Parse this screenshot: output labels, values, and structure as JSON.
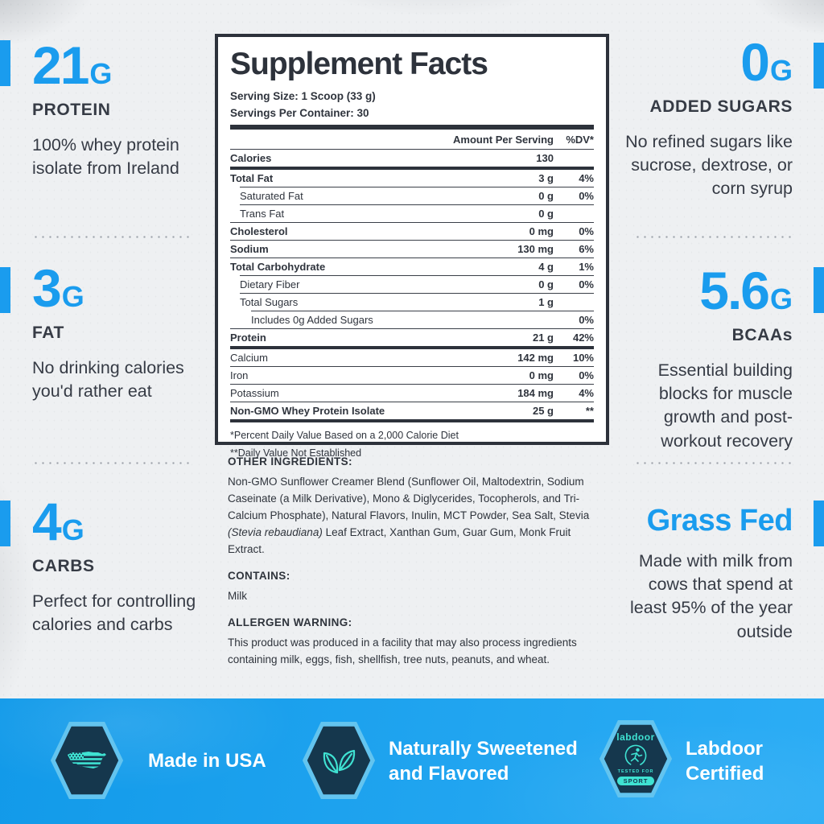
{
  "colors": {
    "accent": "#1a9cee",
    "charcoal": "#343a43",
    "rule-dark": "#2d323b",
    "page-bg": "#eef0f2",
    "banner-top": "#129ae9",
    "banner-bottom": "#2cadf5",
    "hex-fill": "#15374d",
    "hex-ring": "#63c4ef",
    "icon-teal": "#3fe2d2"
  },
  "left_sections": [
    {
      "value": "21",
      "unit": "G",
      "label": "PROTEIN",
      "desc": "100% whey protein isolate from Ireland"
    },
    {
      "value": "3",
      "unit": "G",
      "label": "FAT",
      "desc": "No drinking calories you'd rather eat"
    },
    {
      "value": "4",
      "unit": "G",
      "label": "CARBS",
      "desc": "Perfect for controlling calories and carbs"
    }
  ],
  "right_sections": [
    {
      "value": "0",
      "unit": "G",
      "label": "ADDED SUGARS",
      "desc": "No refined sugars like sucrose, dextrose, or corn syrup"
    },
    {
      "value": "5.6",
      "unit": "G",
      "label": "BCAAs",
      "desc": "Essential building blocks for muscle growth and post-workout recovery"
    },
    {
      "heading": "Grass Fed",
      "desc": "Made with milk from cows that spend at least 95% of the year outside"
    }
  ],
  "panel": {
    "title": "Supplement Facts",
    "serving_size": "Serving Size: 1 Scoop (33 g)",
    "servings_per_container": "Servings Per Container: 30",
    "col_amount": "Amount Per Serving",
    "col_dv": "%DV*",
    "rows": [
      {
        "label": "Calories",
        "amount": "130",
        "dv": "",
        "indent": 0,
        "bold": true,
        "thick": true
      },
      {
        "label": "Total Fat",
        "amount": "3 g",
        "dv": "4%",
        "indent": 0,
        "bold": true,
        "thick": false
      },
      {
        "label": "Saturated Fat",
        "amount": "0 g",
        "dv": "0%",
        "indent": 1,
        "bold": false,
        "thick": false
      },
      {
        "label": "Trans Fat",
        "amount": "0 g",
        "dv": "",
        "indent": 1,
        "bold": false,
        "thick": false
      },
      {
        "label": "Cholesterol",
        "amount": "0 mg",
        "dv": "0%",
        "indent": 0,
        "bold": true,
        "thick": false
      },
      {
        "label": "Sodium",
        "amount": "130 mg",
        "dv": "6%",
        "indent": 0,
        "bold": true,
        "thick": false
      },
      {
        "label": "Total Carbohydrate",
        "amount": "4 g",
        "dv": "1%",
        "indent": 0,
        "bold": true,
        "thick": false
      },
      {
        "label": "Dietary Fiber",
        "amount": "0 g",
        "dv": "0%",
        "indent": 1,
        "bold": false,
        "thick": false
      },
      {
        "label": "Total Sugars",
        "amount": "1 g",
        "dv": "",
        "indent": 1,
        "bold": false,
        "thick": false
      },
      {
        "label": "Includes 0g Added Sugars",
        "amount": "",
        "dv": "0%",
        "indent": 2,
        "bold": false,
        "thick": false
      },
      {
        "label": "Protein",
        "amount": "21 g",
        "dv": "42%",
        "indent": 0,
        "bold": true,
        "thick": true
      },
      {
        "label": "Calcium",
        "amount": "142 mg",
        "dv": "10%",
        "indent": 0,
        "bold": false,
        "thick": false
      },
      {
        "label": "Iron",
        "amount": "0 mg",
        "dv": "0%",
        "indent": 0,
        "bold": false,
        "thick": false
      },
      {
        "label": "Potassium",
        "amount": "184 mg",
        "dv": "4%",
        "indent": 0,
        "bold": false,
        "thick": false
      },
      {
        "label": "Non-GMO Whey Protein Isolate",
        "amount": "25 g",
        "dv": "**",
        "indent": 0,
        "bold": true,
        "thick": true
      }
    ],
    "footnote1": "*Percent Daily Value Based on a 2,000 Calorie Diet",
    "footnote2": "**Daily Value Not Established"
  },
  "ingredients": {
    "other_heading": "OTHER INGREDIENTS:",
    "other_pre": "Non-GMO Sunflower Creamer Blend (Sunflower Oil, Maltodextrin, Sodium Caseinate (a Milk Derivative), Mono & Diglycerides, Tocopherols, and Tri-Calcium Phosphate), Natural Flavors, Inulin, MCT Powder, Sea Salt, Stevia ",
    "other_italic": "(Stevia rebaudiana)",
    "other_post": " Leaf Extract, Xanthan Gum, Guar Gum, Monk Fruit Extract.",
    "contains_heading": "CONTAINS:",
    "contains_text": "Milk",
    "allergen_heading": "ALLERGEN WARNING:",
    "allergen_text": "This product was produced in a facility that may also process ingredients containing milk, eggs, fish, shellfish, tree nuts, peanuts, and wheat."
  },
  "banner": {
    "badges": [
      {
        "label": "Made in USA"
      },
      {
        "label": "Naturally Sweetened and Flavored"
      },
      {
        "label": "Labdoor Certified",
        "wordmark": "labdoor",
        "tested_for": "TESTED FOR",
        "sport": "SPORT"
      }
    ]
  }
}
